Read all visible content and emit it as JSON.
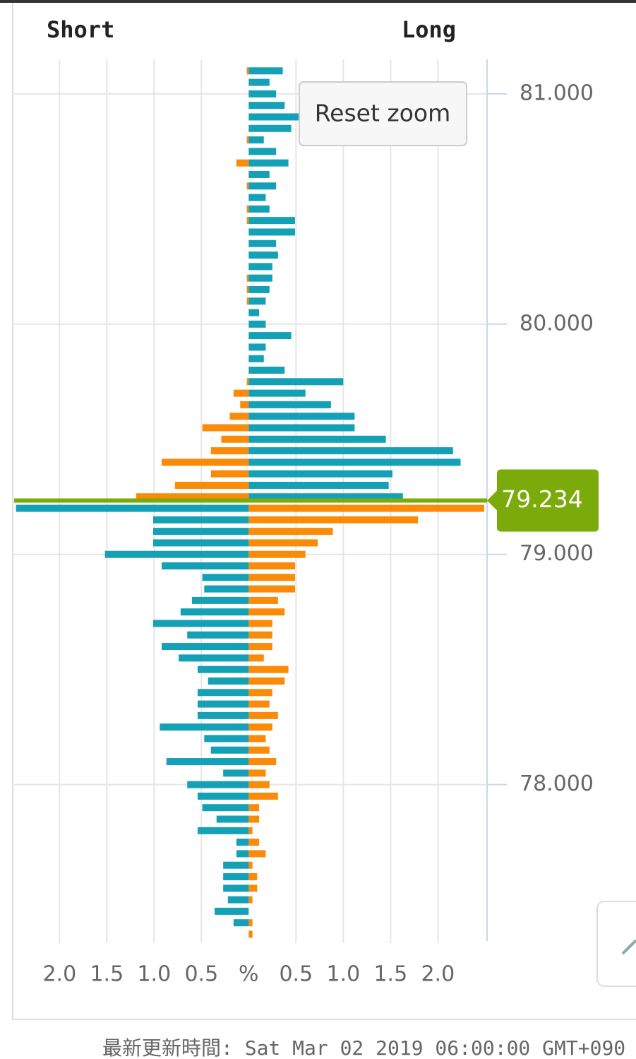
{
  "chart_data": {
    "type": "bar",
    "orientation": "horizontal",
    "left_header": "Short",
    "right_header": "Long",
    "button": "Reset zoom",
    "footer": "最新更新時間: Sat Mar 02 2019 06:00:00 GMT+090",
    "y": [
      81.1,
      81.05,
      81,
      80.95,
      80.9,
      80.85,
      80.8,
      80.75,
      80.7,
      80.65,
      80.6,
      80.55,
      80.5,
      80.45,
      80.4,
      80.35,
      80.3,
      80.25,
      80.2,
      80.15,
      80.1,
      80.05,
      80,
      79.95,
      79.9,
      79.85,
      79.8,
      79.75,
      79.7,
      79.65,
      79.6,
      79.55,
      79.5,
      79.45,
      79.4,
      79.35,
      79.3,
      79.25,
      79.2,
      79.15,
      79.1,
      79.05,
      79,
      78.95,
      78.9,
      78.85,
      78.8,
      78.75,
      78.7,
      78.65,
      78.6,
      78.55,
      78.5,
      78.45,
      78.4,
      78.35,
      78.3,
      78.25,
      78.2,
      78.15,
      78.1,
      78.05,
      78,
      77.95,
      77.9,
      77.85,
      77.8,
      77.75,
      77.7,
      77.65,
      77.6,
      77.55,
      77.5,
      77.45,
      77.4,
      77.35
    ],
    "series": [
      {
        "color": "#f98b08",
        "values": [
          -0.02,
          0,
          0,
          0,
          0,
          0,
          -0.02,
          0,
          -0.13,
          0,
          -0.02,
          0,
          -0.02,
          -0.02,
          0,
          0,
          0,
          0,
          -0.02,
          -0.02,
          -0.02,
          0,
          0,
          0,
          0,
          0,
          0,
          -0.02,
          -0.16,
          -0.09,
          -0.2,
          -0.49,
          -0.29,
          -0.4,
          -0.92,
          -0.4,
          -0.78,
          -1.19,
          2.49,
          1.79,
          0.89,
          0.73,
          0.6,
          0.49,
          0.49,
          0.49,
          0.31,
          0.38,
          0.25,
          0.25,
          0.25,
          0.16,
          0.42,
          0.38,
          0.25,
          0.22,
          0.31,
          0.25,
          0.18,
          0.22,
          0.29,
          0.18,
          0.22,
          0.31,
          0.11,
          0.11,
          0.04,
          0.11,
          0.18,
          0.04,
          0.09,
          0.09,
          0.04,
          0,
          0.04,
          0.04
        ]
      },
      {
        "color": "#14a1b6",
        "values": [
          0.36,
          0.22,
          0.29,
          0.38,
          0.55,
          0.45,
          0.16,
          0.29,
          0.42,
          0.22,
          0.29,
          0.18,
          0.22,
          0.49,
          0.49,
          0.29,
          0.31,
          0.25,
          0.25,
          0.22,
          0.18,
          0.11,
          0.18,
          0.45,
          0.18,
          0.16,
          0.38,
          1.0,
          0.6,
          0.87,
          1.12,
          1.12,
          1.45,
          2.16,
          2.24,
          1.52,
          1.48,
          1.63,
          -2.46,
          -1.01,
          -1.01,
          -1.01,
          -1.52,
          -0.92,
          -0.49,
          -0.47,
          -0.6,
          -0.72,
          -1.01,
          -0.65,
          -0.92,
          -0.74,
          -0.54,
          -0.43,
          -0.54,
          -0.54,
          -0.54,
          -0.94,
          -0.47,
          -0.4,
          -0.87,
          -0.27,
          -0.65,
          -0.54,
          -0.49,
          -0.34,
          -0.54,
          -0.13,
          -0.13,
          -0.27,
          -0.27,
          -0.27,
          -0.22,
          -0.36,
          -0.16,
          0
        ]
      }
    ],
    "current_price": 79.234,
    "current_color": "#7aab0a",
    "xlim": [
      -2.48,
      2.52
    ],
    "xticks": [
      {
        "value": -2,
        "label": "2.0"
      },
      {
        "value": -1.5,
        "label": "1.5"
      },
      {
        "value": -1,
        "label": "1.0"
      },
      {
        "value": -0.5,
        "label": "0.5"
      },
      {
        "value": 0,
        "label": "%"
      },
      0.5,
      {
        "value": 1,
        "label": "1.0"
      },
      1.5,
      {
        "value": 2,
        "label": "2.0"
      }
    ],
    "ylim": [
      77.33,
      81.15
    ],
    "yticks": [
      {
        "value": 81,
        "label": "81.000"
      },
      {
        "value": 80,
        "label": "80.000"
      },
      {
        "value": 79,
        "label": "79.000"
      },
      {
        "value": 78,
        "label": "78.000"
      }
    ],
    "grid": true
  }
}
